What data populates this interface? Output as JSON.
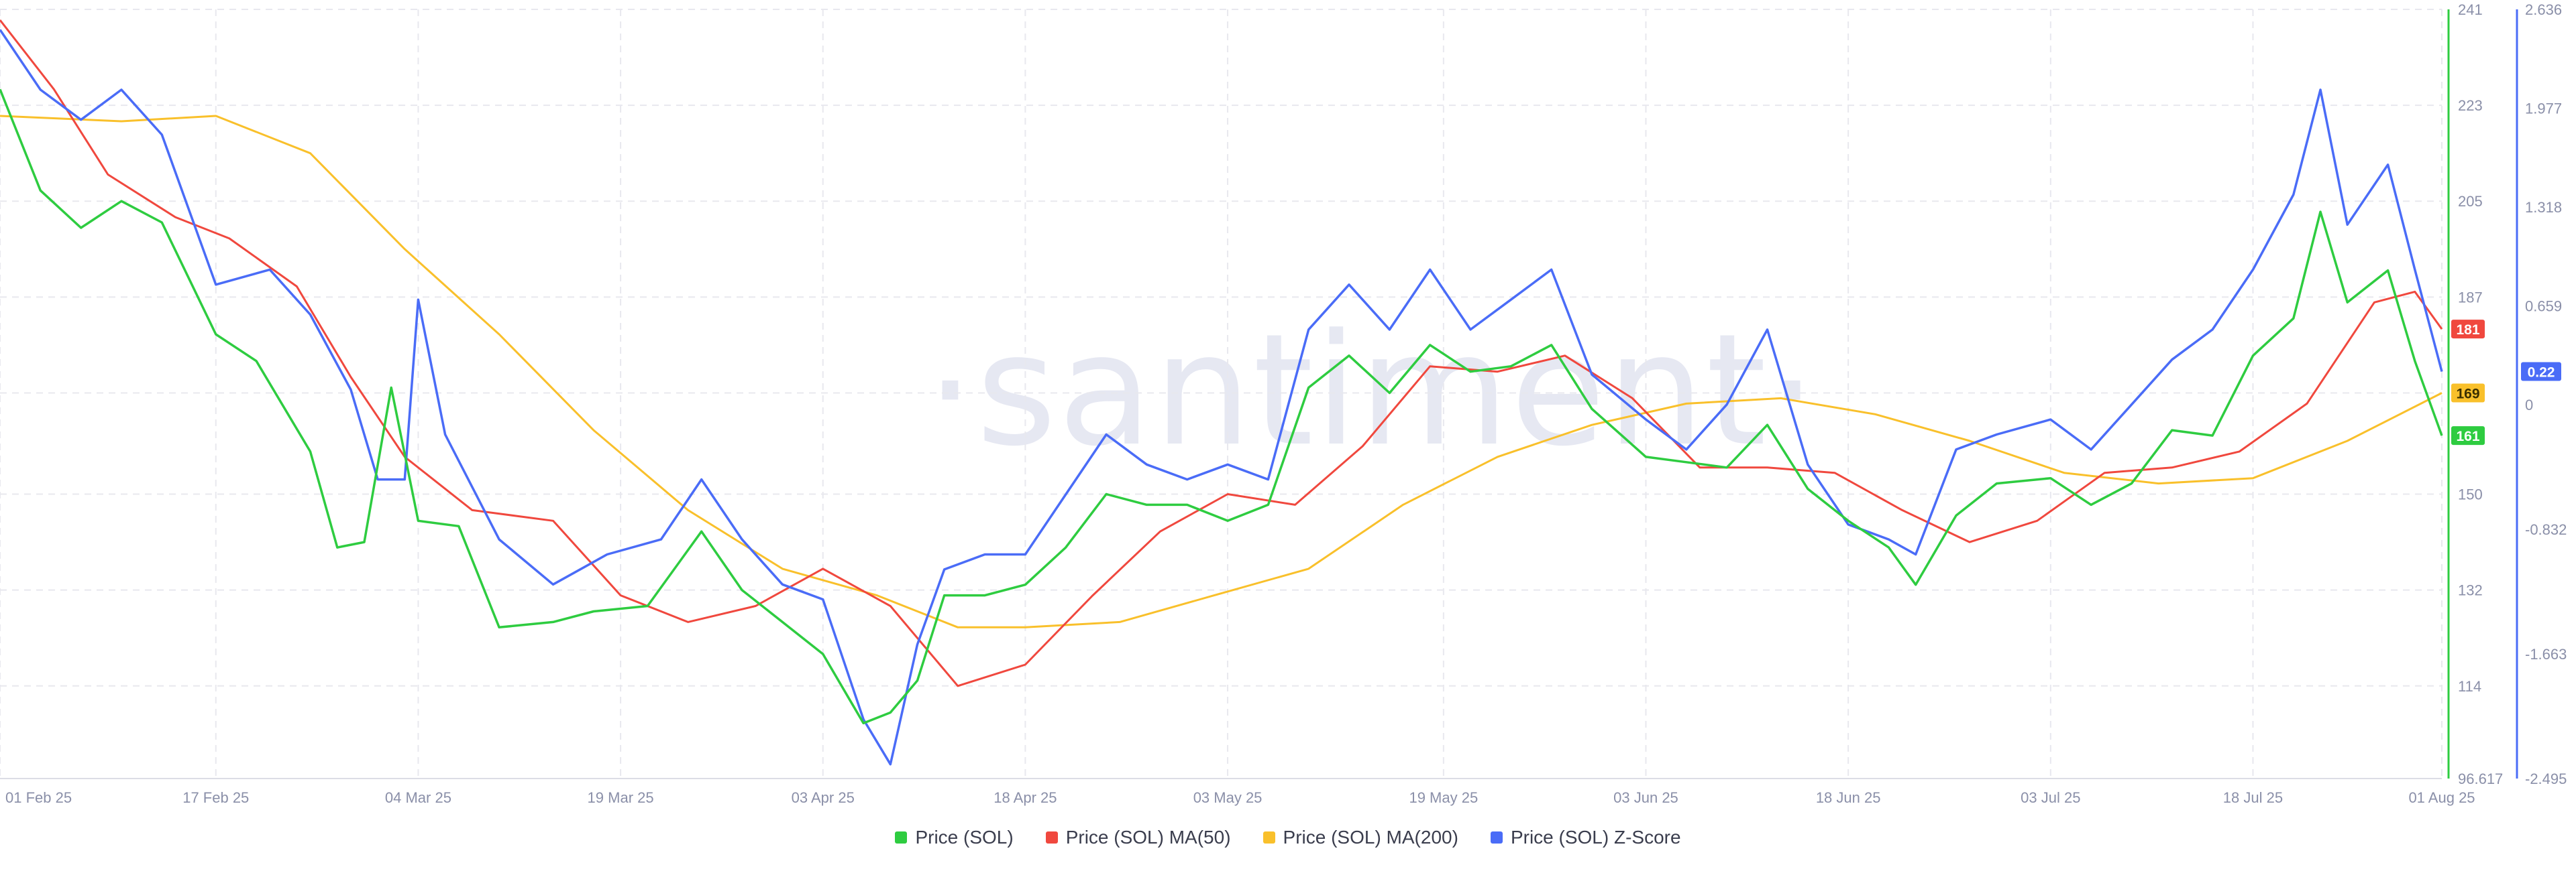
{
  "watermark": "·santiment·",
  "colors": {
    "price": "#2ecc40",
    "ma50": "#f0483e",
    "ma200": "#f9c02b",
    "zscore": "#4a6cf7",
    "grid": "#e8e8ee",
    "tick": "#8a8fa8"
  },
  "chart_data": {
    "type": "line",
    "x_ticks": [
      "01 Feb 25",
      "17 Feb 25",
      "04 Mar 25",
      "19 Mar 25",
      "03 Apr 25",
      "18 Apr 25",
      "03 May 25",
      "19 May 25",
      "03 Jun 25",
      "18 Jun 25",
      "03 Jul 25",
      "18 Jul 25",
      "01 Aug 25"
    ],
    "xlim": [
      "01 Feb 25",
      "01 Aug 25"
    ],
    "y_left": {
      "ticks": [
        "241",
        "223",
        "205",
        "187",
        "169",
        "150",
        "132",
        "114",
        "96.617"
      ],
      "range": [
        96.617,
        241
      ],
      "color": "#2ecc40"
    },
    "y_right": {
      "ticks": [
        "2.636",
        "1.977",
        "1.318",
        "0.659",
        "0",
        "-0.832",
        "-1.663",
        "-2.495"
      ],
      "range": [
        -2.495,
        2.636
      ],
      "color": "#4a6cf7"
    },
    "grid": true,
    "legend_position": "bottom-center",
    "last_value_badges": [
      {
        "label": "181",
        "color": "#f0483e",
        "axis": "left"
      },
      {
        "label": "169",
        "color": "#f9c02b",
        "axis": "left"
      },
      {
        "label": "161",
        "color": "#2ecc40",
        "axis": "left"
      },
      {
        "label": "0.22",
        "color": "#4a6cf7",
        "axis": "right"
      }
    ],
    "series": [
      {
        "name": "Price (SOL)",
        "axis": "left",
        "color": "#2ecc40",
        "points": [
          [
            "01 Feb 25",
            226
          ],
          [
            "04 Feb 25",
            207
          ],
          [
            "07 Feb 25",
            200
          ],
          [
            "10 Feb 25",
            205
          ],
          [
            "13 Feb 25",
            201
          ],
          [
            "17 Feb 25",
            180
          ],
          [
            "20 Feb 25",
            175
          ],
          [
            "24 Feb 25",
            158
          ],
          [
            "26 Feb 25",
            140
          ],
          [
            "28 Feb 25",
            141
          ],
          [
            "02 Mar 25",
            170
          ],
          [
            "04 Mar 25",
            145
          ],
          [
            "07 Mar 25",
            144
          ],
          [
            "10 Mar 25",
            125
          ],
          [
            "14 Mar 25",
            126
          ],
          [
            "17 Mar 25",
            128
          ],
          [
            "21 Mar 25",
            129
          ],
          [
            "25 Mar 25",
            143
          ],
          [
            "28 Mar 25",
            132
          ],
          [
            "31 Mar 25",
            126
          ],
          [
            "03 Apr 25",
            120
          ],
          [
            "06 Apr 25",
            107
          ],
          [
            "08 Apr 25",
            109
          ],
          [
            "10 Apr 25",
            115
          ],
          [
            "12 Apr 25",
            131
          ],
          [
            "15 Apr 25",
            131
          ],
          [
            "18 Apr 25",
            133
          ],
          [
            "21 Apr 25",
            140
          ],
          [
            "24 Apr 25",
            150
          ],
          [
            "27 Apr 25",
            148
          ],
          [
            "30 Apr 25",
            148
          ],
          [
            "03 May 25",
            145
          ],
          [
            "06 May 25",
            148
          ],
          [
            "09 May 25",
            170
          ],
          [
            "12 May 25",
            176
          ],
          [
            "15 May 25",
            169
          ],
          [
            "18 May 25",
            178
          ],
          [
            "21 May 25",
            173
          ],
          [
            "24 May 25",
            174
          ],
          [
            "27 May 25",
            178
          ],
          [
            "30 May 25",
            166
          ],
          [
            "03 Jun 25",
            157
          ],
          [
            "06 Jun 25",
            156
          ],
          [
            "09 Jun 25",
            155
          ],
          [
            "12 Jun 25",
            163
          ],
          [
            "15 Jun 25",
            151
          ],
          [
            "18 Jun 25",
            145
          ],
          [
            "21 Jun 25",
            140
          ],
          [
            "23 Jun 25",
            133
          ],
          [
            "26 Jun 25",
            146
          ],
          [
            "29 Jun 25",
            152
          ],
          [
            "03 Jul 25",
            153
          ],
          [
            "06 Jul 25",
            148
          ],
          [
            "09 Jul 25",
            152
          ],
          [
            "12 Jul 25",
            162
          ],
          [
            "15 Jul 25",
            161
          ],
          [
            "18 Jul 25",
            176
          ],
          [
            "21 Jul 25",
            183
          ],
          [
            "23 Jul 25",
            203
          ],
          [
            "25 Jul 25",
            186
          ],
          [
            "28 Jul 25",
            192
          ],
          [
            "30 Jul 25",
            175
          ],
          [
            "01 Aug 25",
            161
          ]
        ]
      },
      {
        "name": "Price (SOL) MA(50)",
        "axis": "left",
        "color": "#f0483e",
        "points": [
          [
            "01 Feb 25",
            239
          ],
          [
            "05 Feb 25",
            226
          ],
          [
            "09 Feb 25",
            210
          ],
          [
            "14 Feb 25",
            202
          ],
          [
            "18 Feb 25",
            198
          ],
          [
            "23 Feb 25",
            189
          ],
          [
            "27 Feb 25",
            172
          ],
          [
            "03 Mar 25",
            157
          ],
          [
            "08 Mar 25",
            147
          ],
          [
            "14 Mar 25",
            145
          ],
          [
            "19 Mar 25",
            131
          ],
          [
            "24 Mar 25",
            126
          ],
          [
            "29 Mar 25",
            129
          ],
          [
            "03 Apr 25",
            136
          ],
          [
            "08 Apr 25",
            129
          ],
          [
            "13 Apr 25",
            114
          ],
          [
            "18 Apr 25",
            118
          ],
          [
            "23 Apr 25",
            131
          ],
          [
            "28 Apr 25",
            143
          ],
          [
            "03 May 25",
            150
          ],
          [
            "08 May 25",
            148
          ],
          [
            "13 May 25",
            159
          ],
          [
            "18 May 25",
            174
          ],
          [
            "23 May 25",
            173
          ],
          [
            "28 May 25",
            176
          ],
          [
            "02 Jun 25",
            168
          ],
          [
            "07 Jun 25",
            155
          ],
          [
            "12 Jun 25",
            155
          ],
          [
            "17 Jun 25",
            154
          ],
          [
            "22 Jun 25",
            147
          ],
          [
            "27 Jun 25",
            141
          ],
          [
            "02 Jul 25",
            145
          ],
          [
            "07 Jul 25",
            154
          ],
          [
            "12 Jul 25",
            155
          ],
          [
            "17 Jul 25",
            158
          ],
          [
            "22 Jul 25",
            167
          ],
          [
            "27 Jul 25",
            186
          ],
          [
            "30 Jul 25",
            188
          ],
          [
            "01 Aug 25",
            181
          ]
        ]
      },
      {
        "name": "Price (SOL) MA(200)",
        "axis": "left",
        "color": "#f9c02b",
        "points": [
          [
            "01 Feb 25",
            221
          ],
          [
            "10 Feb 25",
            220
          ],
          [
            "17 Feb 25",
            221
          ],
          [
            "24 Feb 25",
            214
          ],
          [
            "03 Mar 25",
            196
          ],
          [
            "10 Mar 25",
            180
          ],
          [
            "17 Mar 25",
            162
          ],
          [
            "24 Mar 25",
            147
          ],
          [
            "31 Mar 25",
            136
          ],
          [
            "07 Apr 25",
            131
          ],
          [
            "13 Apr 25",
            125
          ],
          [
            "18 Apr 25",
            125
          ],
          [
            "25 Apr 25",
            126
          ],
          [
            "02 May 25",
            131
          ],
          [
            "09 May 25",
            136
          ],
          [
            "16 May 25",
            148
          ],
          [
            "23 May 25",
            157
          ],
          [
            "30 May 25",
            163
          ],
          [
            "06 Jun 25",
            167
          ],
          [
            "13 Jun 25",
            168
          ],
          [
            "20 Jun 25",
            165
          ],
          [
            "27 Jun 25",
            160
          ],
          [
            "04 Jul 25",
            154
          ],
          [
            "11 Jul 25",
            152
          ],
          [
            "18 Jul 25",
            153
          ],
          [
            "25 Jul 25",
            160
          ],
          [
            "01 Aug 25",
            169
          ]
        ]
      },
      {
        "name": "Price (SOL) Z-Score",
        "axis": "right",
        "color": "#4a6cf7",
        "points": [
          [
            "01 Feb 25",
            2.5
          ],
          [
            "04 Feb 25",
            2.1
          ],
          [
            "07 Feb 25",
            1.9
          ],
          [
            "10 Feb 25",
            2.1
          ],
          [
            "13 Feb 25",
            1.8
          ],
          [
            "17 Feb 25",
            0.8
          ],
          [
            "21 Feb 25",
            0.9
          ],
          [
            "24 Feb 25",
            0.6
          ],
          [
            "27 Feb 25",
            0.1
          ],
          [
            "01 Mar 25",
            -0.5
          ],
          [
            "03 Mar 25",
            -0.5
          ],
          [
            "04 Mar 25",
            0.7
          ],
          [
            "06 Mar 25",
            -0.2
          ],
          [
            "10 Mar 25",
            -0.9
          ],
          [
            "14 Mar 25",
            -1.2
          ],
          [
            "18 Mar 25",
            -1.0
          ],
          [
            "22 Mar 25",
            -0.9
          ],
          [
            "25 Mar 25",
            -0.5
          ],
          [
            "28 Mar 25",
            -0.9
          ],
          [
            "31 Mar 25",
            -1.2
          ],
          [
            "03 Apr 25",
            -1.3
          ],
          [
            "06 Apr 25",
            -2.1
          ],
          [
            "08 Apr 25",
            -2.4
          ],
          [
            "10 Apr 25",
            -1.6
          ],
          [
            "12 Apr 25",
            -1.1
          ],
          [
            "15 Apr 25",
            -1.0
          ],
          [
            "18 Apr 25",
            -1.0
          ],
          [
            "21 Apr 25",
            -0.6
          ],
          [
            "24 Apr 25",
            -0.2
          ],
          [
            "27 Apr 25",
            -0.4
          ],
          [
            "30 Apr 25",
            -0.5
          ],
          [
            "03 May 25",
            -0.4
          ],
          [
            "06 May 25",
            -0.5
          ],
          [
            "09 May 25",
            0.5
          ],
          [
            "12 May 25",
            0.8
          ],
          [
            "15 May 25",
            0.5
          ],
          [
            "18 May 25",
            0.9
          ],
          [
            "21 May 25",
            0.5
          ],
          [
            "24 May 25",
            0.7
          ],
          [
            "27 May 25",
            0.9
          ],
          [
            "30 May 25",
            0.2
          ],
          [
            "03 Jun 25",
            -0.1
          ],
          [
            "06 Jun 25",
            -0.3
          ],
          [
            "09 Jun 25",
            0.0
          ],
          [
            "12 Jun 25",
            0.5
          ],
          [
            "15 Jun 25",
            -0.4
          ],
          [
            "18 Jun 25",
            -0.8
          ],
          [
            "21 Jun 25",
            -0.9
          ],
          [
            "23 Jun 25",
            -1.0
          ],
          [
            "26 Jun 25",
            -0.3
          ],
          [
            "29 Jun 25",
            -0.2
          ],
          [
            "03 Jul 25",
            -0.1
          ],
          [
            "06 Jul 25",
            -0.3
          ],
          [
            "09 Jul 25",
            0.0
          ],
          [
            "12 Jul 25",
            0.3
          ],
          [
            "15 Jul 25",
            0.5
          ],
          [
            "18 Jul 25",
            0.9
          ],
          [
            "21 Jul 25",
            1.4
          ],
          [
            "23 Jul 25",
            2.1
          ],
          [
            "25 Jul 25",
            1.2
          ],
          [
            "28 Jul 25",
            1.6
          ],
          [
            "30 Jul 25",
            0.9
          ],
          [
            "01 Aug 25",
            0.22
          ]
        ]
      }
    ]
  }
}
